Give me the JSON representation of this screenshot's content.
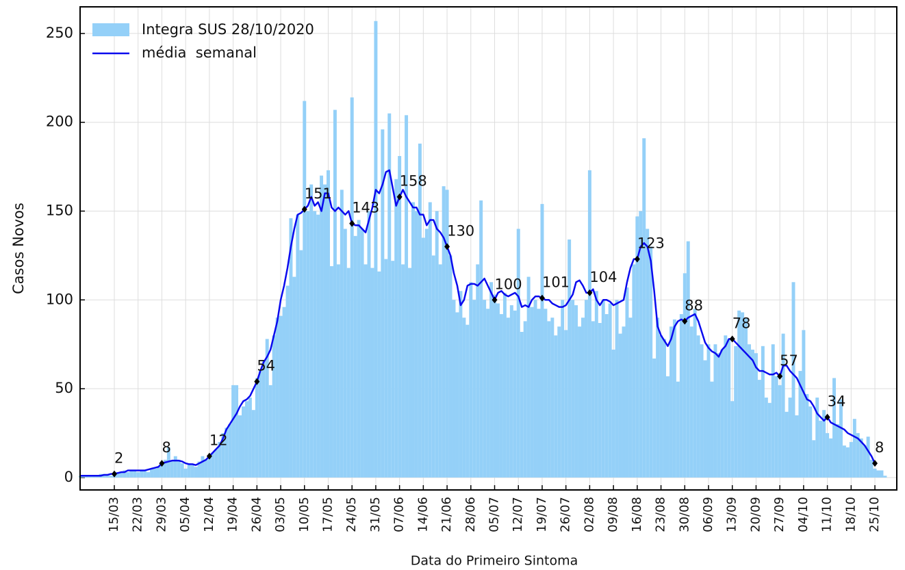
{
  "chart_data": {
    "type": "bar",
    "x_label": "Data do Primeiro Sintoma",
    "y_label": "Casos Novos",
    "ylim": [
      -7,
      265
    ],
    "yticks": [
      0,
      50,
      100,
      150,
      200,
      250
    ],
    "grid": true,
    "legend": "upper left",
    "categories": [
      null,
      null,
      null,
      null,
      null,
      null,
      null,
      null,
      null,
      null,
      "15/03",
      null,
      null,
      null,
      null,
      null,
      null,
      "22/03",
      null,
      null,
      null,
      null,
      null,
      null,
      "29/03",
      null,
      null,
      null,
      null,
      null,
      null,
      "05/04",
      null,
      null,
      null,
      null,
      null,
      null,
      "12/04",
      null,
      null,
      null,
      null,
      null,
      null,
      "19/04",
      null,
      null,
      null,
      null,
      null,
      null,
      "26/04",
      null,
      null,
      null,
      null,
      null,
      null,
      "03/05",
      null,
      null,
      null,
      null,
      null,
      null,
      "10/05",
      null,
      null,
      null,
      null,
      null,
      null,
      "17/05",
      null,
      null,
      null,
      null,
      null,
      null,
      "24/05",
      null,
      null,
      null,
      null,
      null,
      null,
      "31/05",
      null,
      null,
      null,
      null,
      null,
      null,
      "07/06",
      null,
      null,
      null,
      null,
      null,
      null,
      "14/06",
      null,
      null,
      null,
      null,
      null,
      null,
      "21/06",
      null,
      null,
      null,
      null,
      null,
      null,
      "28/06",
      null,
      null,
      null,
      null,
      null,
      null,
      "05/07",
      null,
      null,
      null,
      null,
      null,
      null,
      "12/07",
      null,
      null,
      null,
      null,
      null,
      null,
      "19/07",
      null,
      null,
      null,
      null,
      null,
      null,
      "26/07",
      null,
      null,
      null,
      null,
      null,
      null,
      "02/08",
      null,
      null,
      null,
      null,
      null,
      null,
      "09/08",
      null,
      null,
      null,
      null,
      null,
      null,
      "16/08",
      null,
      null,
      null,
      null,
      null,
      null,
      "23/08",
      null,
      null,
      null,
      null,
      null,
      null,
      "30/08",
      null,
      null,
      null,
      null,
      null,
      null,
      "06/09",
      null,
      null,
      null,
      null,
      null,
      null,
      "13/09",
      null,
      null,
      null,
      null,
      null,
      null,
      "20/09",
      null,
      null,
      null,
      null,
      null,
      null,
      "27/09",
      null,
      null,
      null,
      null,
      null,
      null,
      "04/10",
      null,
      null,
      null,
      null,
      null,
      null,
      "11/10",
      null,
      null,
      null,
      null,
      null,
      null,
      "18/10",
      null,
      null,
      null,
      null,
      null,
      null,
      "25/10",
      null,
      null,
      null
    ],
    "series": [
      {
        "name": "Integra SUS 28/10/2020",
        "kind": "bar",
        "color": "#94d0f8",
        "values": [
          1,
          1,
          1,
          1,
          1,
          1,
          2,
          2,
          2,
          1,
          2,
          3,
          3,
          4,
          3,
          4,
          4,
          3,
          4,
          4,
          3,
          5,
          5,
          6,
          8,
          10,
          17,
          9,
          12,
          10,
          8,
          5,
          8,
          7,
          6,
          9,
          12,
          10,
          12,
          14,
          16,
          20,
          25,
          28,
          30,
          52,
          52,
          35,
          40,
          43,
          45,
          38,
          56,
          60,
          66,
          78,
          52,
          80,
          90,
          91,
          96,
          108,
          146,
          113,
          148,
          128,
          212,
          150,
          165,
          150,
          148,
          170,
          165,
          173,
          119,
          207,
          120,
          162,
          140,
          118,
          214,
          136,
          145,
          140,
          120,
          150,
          118,
          257,
          116,
          196,
          123,
          205,
          122,
          168,
          181,
          120,
          204,
          118,
          155,
          150,
          188,
          135,
          140,
          155,
          125,
          150,
          120,
          164,
          162,
          125,
          100,
          93,
          105,
          90,
          86,
          110,
          100,
          120,
          156,
          100,
          95,
          110,
          103,
          98,
          92,
          104,
          90,
          97,
          94,
          140,
          82,
          88,
          113,
          96,
          100,
          95,
          154,
          95,
          88,
          90,
          80,
          85,
          100,
          83,
          134,
          100,
          97,
          85,
          90,
          100,
          173,
          88,
          105,
          87,
          100,
          92,
          98,
          72,
          100,
          81,
          85,
          107,
          90,
          120,
          147,
          150,
          191,
          140,
          130,
          67,
          90,
          80,
          78,
          57,
          85,
          89,
          54,
          92,
          115,
          133,
          85,
          95,
          80,
          75,
          66,
          75,
          54,
          75,
          70,
          72,
          80,
          78,
          43,
          74,
          94,
          93,
          90,
          75,
          72,
          70,
          55,
          74,
          45,
          42,
          75,
          57,
          52,
          81,
          37,
          45,
          110,
          35,
          60,
          83,
          47,
          40,
          21,
          45,
          32,
          38,
          25,
          22,
          56,
          30,
          44,
          18,
          17,
          20,
          33,
          25,
          22,
          18,
          23,
          10,
          5,
          4,
          4,
          1
        ]
      },
      {
        "name": "média  semanal",
        "kind": "line",
        "color": "#0a0aee",
        "values": [
          1,
          1,
          1,
          1,
          1,
          1,
          1,
          1.5,
          1.5,
          2,
          2,
          2.5,
          3,
          3,
          4,
          4,
          4,
          4,
          4,
          4,
          4.5,
          5,
          5.5,
          6,
          8,
          8.5,
          9,
          9.5,
          9.5,
          9.5,
          9,
          8,
          7.5,
          7.5,
          7,
          8,
          9,
          10,
          12,
          14,
          16,
          18,
          22,
          27,
          30,
          33,
          36,
          40,
          43,
          44,
          46,
          50,
          54,
          60,
          65,
          68,
          72,
          80,
          88,
          100,
          108,
          118,
          130,
          140,
          148,
          149,
          151,
          153,
          158,
          153,
          155,
          150,
          160,
          160,
          152,
          150,
          152,
          150,
          148,
          150,
          143,
          142,
          142,
          140,
          138,
          145,
          152,
          162,
          160,
          165,
          172,
          173,
          163,
          153,
          158,
          162,
          158,
          155,
          152,
          152,
          148,
          148,
          142,
          145,
          145,
          140,
          138,
          135,
          130,
          125,
          115,
          108,
          97,
          100,
          108,
          109,
          109,
          108,
          110,
          112,
          108,
          104,
          100,
          104,
          105,
          103,
          102,
          103,
          104,
          102,
          96,
          97,
          96,
          100,
          102,
          102,
          101,
          100,
          100,
          98,
          97,
          96,
          96,
          97,
          100,
          103,
          110,
          111,
          108,
          104,
          104,
          106,
          100,
          97,
          100,
          100,
          99,
          97,
          98,
          99,
          100,
          110,
          118,
          123,
          123,
          130,
          132,
          130,
          122,
          105,
          85,
          80,
          77,
          74,
          78,
          85,
          88,
          89,
          88,
          90,
          91,
          92,
          88,
          82,
          76,
          73,
          71,
          70,
          68,
          72,
          74,
          78,
          78,
          76,
          74,
          72,
          70,
          68,
          66,
          62,
          60,
          60,
          59,
          58,
          58,
          59,
          57,
          63,
          63,
          60,
          58,
          56,
          52,
          48,
          44,
          43,
          40,
          36,
          34,
          32,
          34,
          31,
          30,
          29,
          28,
          27,
          25,
          24,
          23,
          22,
          20,
          18,
          15,
          12,
          8,
          null,
          null,
          null
        ]
      }
    ],
    "annotations": [
      {
        "x": "15/03",
        "value": 2
      },
      {
        "x": "29/03",
        "value": 8
      },
      {
        "x": "12/04",
        "value": 12
      },
      {
        "x": "26/04",
        "value": 54
      },
      {
        "x": "10/05",
        "value": 151
      },
      {
        "x": "24/05",
        "value": 143
      },
      {
        "x": "07/06",
        "value": 158
      },
      {
        "x": "21/06",
        "value": 130
      },
      {
        "x": "05/07",
        "value": 100
      },
      {
        "x": "19/07",
        "value": 101
      },
      {
        "x": "02/08",
        "value": 104
      },
      {
        "x": "16/08",
        "value": 123
      },
      {
        "x": "30/08",
        "value": 88
      },
      {
        "x": "13/09",
        "value": 78
      },
      {
        "x": "27/09",
        "value": 57
      },
      {
        "x": "11/10",
        "value": 34
      },
      {
        "x": "25/10",
        "value": 8
      }
    ]
  }
}
